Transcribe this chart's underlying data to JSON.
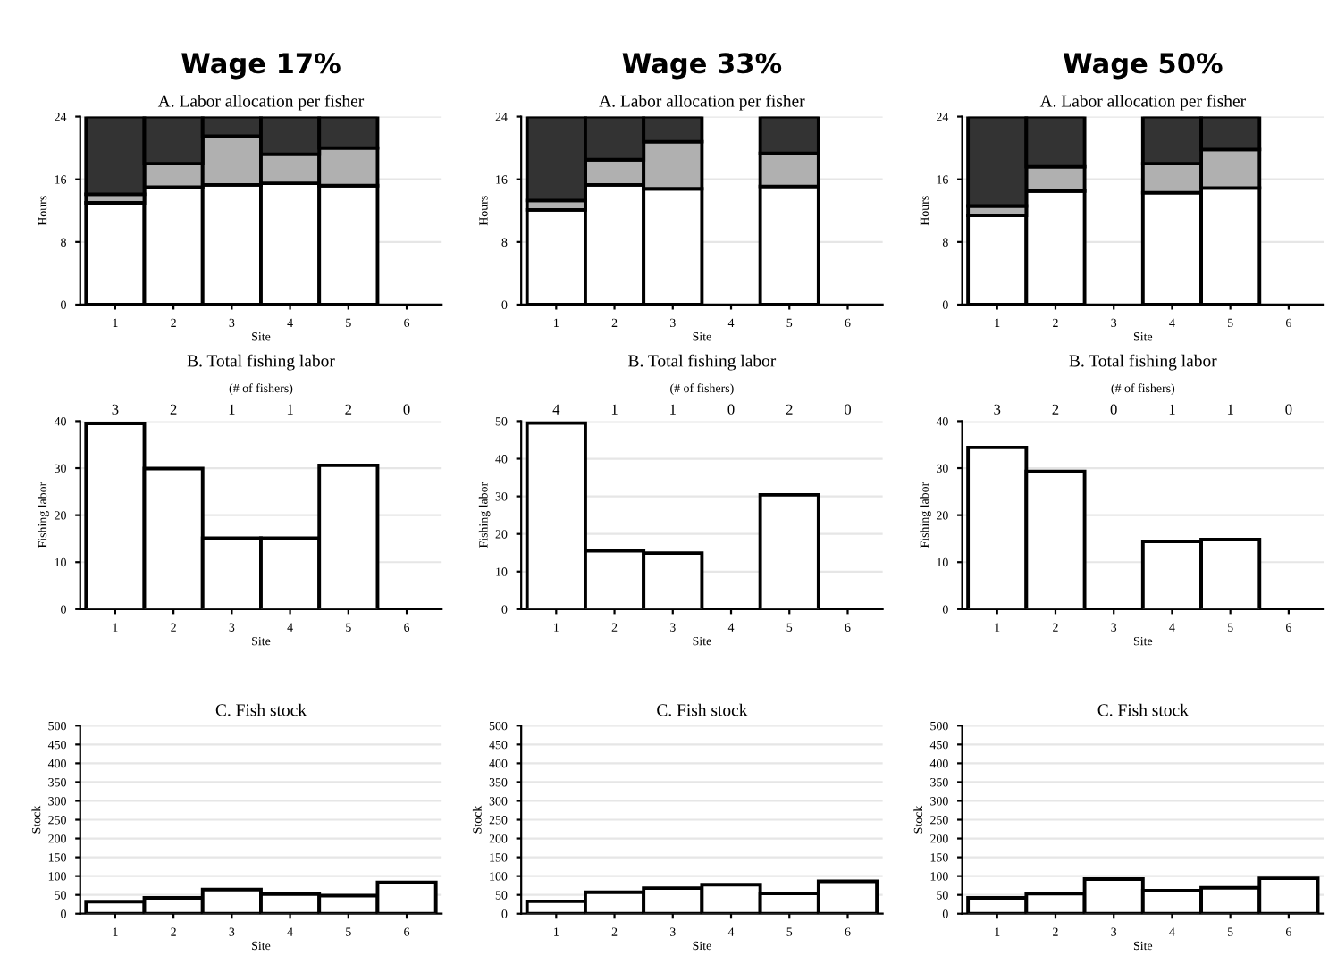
{
  "chart_data": [
    {
      "type": "bar",
      "title": "Wage 17%",
      "subtitle": "A. Labor allocation per fisher",
      "xlabel": "Site",
      "ylabel": "Hours",
      "categories": [
        "1",
        "2",
        "3",
        "4",
        "5",
        "6"
      ],
      "stacked": true,
      "ylim": [
        0,
        24
      ],
      "yticks": [
        0,
        8,
        16,
        24
      ],
      "grid": "y",
      "legend": false,
      "series": [
        {
          "color": "#ffffff",
          "values": [
            13,
            15,
            15.3,
            15.5,
            15.2,
            null
          ]
        },
        {
          "color": "#b0b0b0",
          "values": [
            1.1,
            3,
            6.2,
            3.7,
            4.8,
            null
          ]
        },
        {
          "color": "#333333",
          "values": [
            9.9,
            6,
            2.5,
            4.8,
            4,
            null
          ]
        }
      ]
    },
    {
      "type": "bar",
      "title": "Wage 33%",
      "subtitle": "A. Labor allocation per fisher",
      "xlabel": "Site",
      "ylabel": "Hours",
      "categories": [
        "1",
        "2",
        "3",
        "4",
        "5",
        "6"
      ],
      "stacked": true,
      "ylim": [
        0,
        24
      ],
      "yticks": [
        0,
        8,
        16,
        24
      ],
      "grid": "y",
      "legend": false,
      "series": [
        {
          "color": "#ffffff",
          "values": [
            12.1,
            15.3,
            14.8,
            null,
            15.1,
            null
          ]
        },
        {
          "color": "#b0b0b0",
          "values": [
            1.2,
            3.2,
            6,
            null,
            4.2,
            null
          ]
        },
        {
          "color": "#333333",
          "values": [
            10.7,
            5.5,
            3.2,
            null,
            4.7,
            null
          ]
        }
      ]
    },
    {
      "type": "bar",
      "title": "Wage 50%",
      "subtitle": "A. Labor allocation per fisher",
      "xlabel": "Site",
      "ylabel": "Hours",
      "categories": [
        "1",
        "2",
        "3",
        "4",
        "5",
        "6"
      ],
      "stacked": true,
      "ylim": [
        0,
        24
      ],
      "yticks": [
        0,
        8,
        16,
        24
      ],
      "grid": "y",
      "legend": false,
      "series": [
        {
          "color": "#ffffff",
          "values": [
            11.4,
            14.5,
            null,
            14.3,
            14.9,
            null
          ]
        },
        {
          "color": "#b0b0b0",
          "values": [
            1.2,
            3.1,
            null,
            3.7,
            4.9,
            null
          ]
        },
        {
          "color": "#333333",
          "values": [
            11.4,
            6.4,
            null,
            6,
            4.2,
            null
          ]
        }
      ]
    },
    {
      "type": "bar",
      "title": "B. Total fishing labor",
      "subtitle": "(# of fishers)",
      "xlabel": "Site",
      "ylabel": "Fishing labor",
      "categories": [
        "1",
        "2",
        "3",
        "4",
        "5",
        "6"
      ],
      "ylim": [
        0,
        40
      ],
      "yticks": [
        0,
        10,
        20,
        30,
        40
      ],
      "grid": "y",
      "legend": false,
      "series": [
        {
          "color": "#ffffff",
          "values": [
            39.5,
            29.9,
            15.1,
            15.1,
            30.6,
            null
          ]
        }
      ],
      "annotations": [
        "3",
        "2",
        "1",
        "1",
        "2",
        "0"
      ]
    },
    {
      "type": "bar",
      "title": "B. Total fishing labor",
      "subtitle": "(# of fishers)",
      "xlabel": "Site",
      "ylabel": "Fishing labor",
      "categories": [
        "1",
        "2",
        "3",
        "4",
        "5",
        "6"
      ],
      "ylim": [
        0,
        50
      ],
      "yticks": [
        0,
        10,
        20,
        30,
        40,
        50
      ],
      "grid": "y",
      "legend": false,
      "series": [
        {
          "color": "#ffffff",
          "values": [
            49.5,
            15.5,
            14.9,
            null,
            30.4,
            null
          ]
        }
      ],
      "annotations": [
        "4",
        "1",
        "1",
        "0",
        "2",
        "0"
      ]
    },
    {
      "type": "bar",
      "title": "B. Total fishing labor",
      "subtitle": "(# of fishers)",
      "xlabel": "Site",
      "ylabel": "Fishing labor",
      "categories": [
        "1",
        "2",
        "3",
        "4",
        "5",
        "6"
      ],
      "ylim": [
        0,
        40
      ],
      "yticks": [
        0,
        10,
        20,
        30,
        40
      ],
      "grid": "y",
      "legend": false,
      "series": [
        {
          "color": "#ffffff",
          "values": [
            34.4,
            29.3,
            null,
            14.4,
            14.8,
            null
          ]
        }
      ],
      "annotations": [
        "3",
        "2",
        "0",
        "1",
        "1",
        "0"
      ]
    },
    {
      "type": "bar",
      "title": "C. Fish stock",
      "xlabel": "Site",
      "ylabel": "Stock",
      "categories": [
        "1",
        "2",
        "3",
        "4",
        "5",
        "6"
      ],
      "ylim": [
        0,
        500
      ],
      "yticks": [
        0,
        50,
        100,
        150,
        200,
        250,
        300,
        350,
        400,
        450,
        500
      ],
      "grid": "y",
      "legend": false,
      "series": [
        {
          "color": "#ffffff",
          "values": [
            32,
            42,
            64,
            52,
            48,
            83
          ]
        }
      ]
    },
    {
      "type": "bar",
      "title": "C. Fish stock",
      "xlabel": "Site",
      "ylabel": "Stock",
      "categories": [
        "1",
        "2",
        "3",
        "4",
        "5",
        "6"
      ],
      "ylim": [
        0,
        500
      ],
      "yticks": [
        0,
        50,
        100,
        150,
        200,
        250,
        300,
        350,
        400,
        450,
        500
      ],
      "grid": "y",
      "legend": false,
      "series": [
        {
          "color": "#ffffff",
          "values": [
            33,
            57,
            68,
            77,
            54,
            86
          ]
        }
      ]
    },
    {
      "type": "bar",
      "title": "C. Fish stock",
      "xlabel": "Site",
      "ylabel": "Stock",
      "categories": [
        "1",
        "2",
        "3",
        "4",
        "5",
        "6"
      ],
      "ylim": [
        0,
        500
      ],
      "yticks": [
        0,
        50,
        100,
        150,
        200,
        250,
        300,
        350,
        400,
        450,
        500
      ],
      "grid": "y",
      "legend": false,
      "series": [
        {
          "color": "#ffffff",
          "values": [
            42,
            53,
            92,
            61,
            69,
            94
          ]
        }
      ]
    }
  ]
}
